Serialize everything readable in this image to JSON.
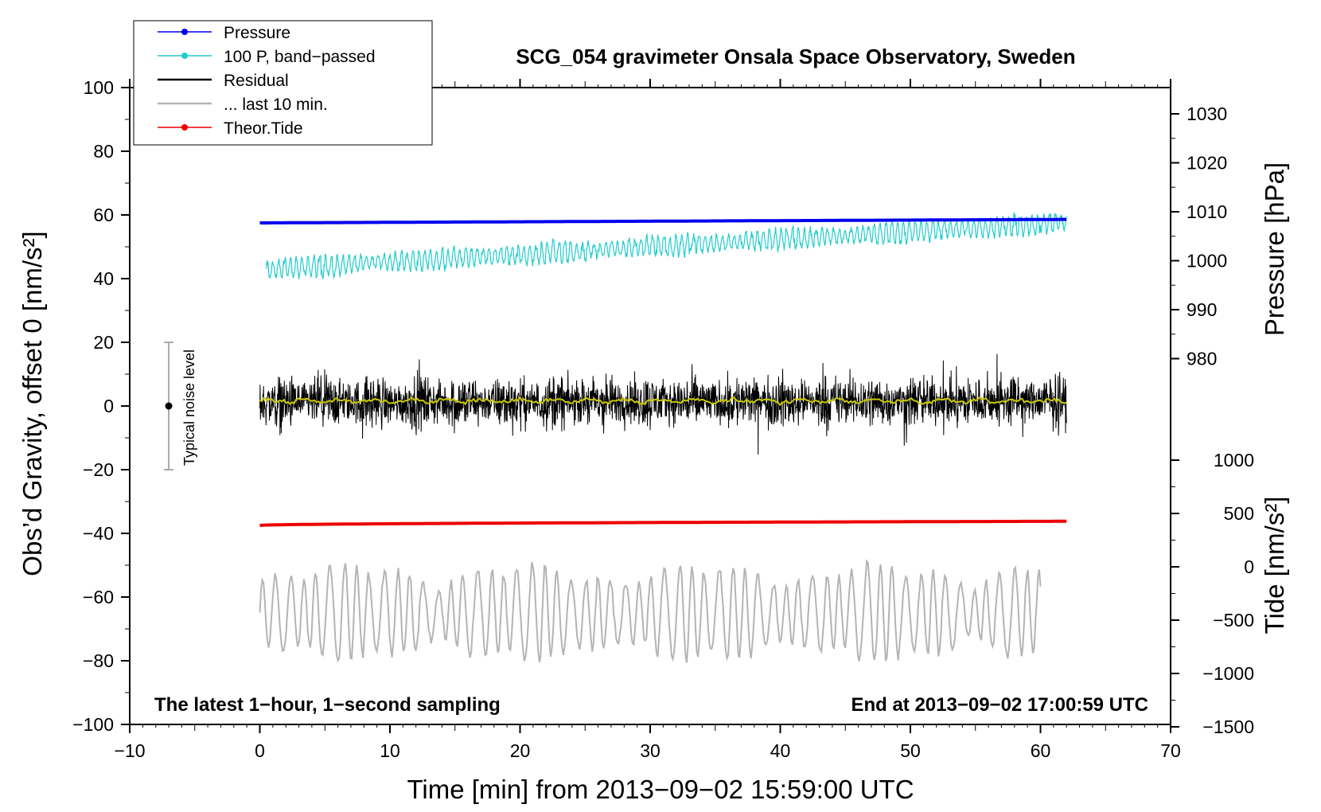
{
  "chart_data": {
    "type": "line",
    "title": "SCG_054 gravimeter Onsala Space Observatory, Sweden",
    "xlabel": "Time [min] from 2013−09−02 15:59:00 UTC",
    "ylabel_left": "Obs’d Gravity, offset 0 [nm/s²]",
    "ylabel_right_top": "Pressure [hPa]",
    "ylabel_right_bottom": "Tide [nm/s²]",
    "xlim": [
      -10,
      70
    ],
    "ylim_left": [
      -100,
      100
    ],
    "grid": false,
    "legend_position": "top-left",
    "x_ticks": [
      "−10",
      "0",
      "10",
      "20",
      "30",
      "40",
      "50",
      "60",
      "70"
    ],
    "y_ticks_left": [
      "100",
      "80",
      "60",
      "40",
      "20",
      "0",
      "−20",
      "−40",
      "−60",
      "−80",
      "−100"
    ],
    "pressure_ticks": [
      "1030",
      "1020",
      "1010",
      "1000",
      "990",
      "980"
    ],
    "tide_ticks": [
      "1000",
      "500",
      "0",
      "−500",
      "−1000",
      "−1500"
    ],
    "annotation_left": "The latest 1−hour, 1−second sampling",
    "annotation_right": "End at 2013−09−02 17:00:59 UTC",
    "noise_label": "Typical noise level",
    "noise_bar": {
      "x": -7,
      "y": 0,
      "low": -20,
      "high": 20
    },
    "series": [
      {
        "name": "Pressure",
        "color": "#0000ee",
        "x_range": [
          0,
          62
        ],
        "start": 57.5,
        "end": 58.6
      },
      {
        "name": "100 P, band−passed",
        "color": "#22cccc",
        "x_range": [
          0.5,
          62
        ],
        "start": 43,
        "end": 57.5,
        "amplitude": 3
      },
      {
        "name": "Residual",
        "color": "#000000",
        "x_range": [
          0,
          62
        ],
        "start": 1,
        "end": 1.5,
        "amplitude": 12
      },
      {
        "name": "... last 10 min.",
        "color": "#b4b4b4",
        "x_range": [
          0,
          60
        ],
        "start": -65,
        "end": -65,
        "amplitude": 12
      },
      {
        "name": "Theor.Tide",
        "color": "#ee0000",
        "x_range": [
          0,
          62
        ],
        "start": -37.5,
        "end": -36.2
      }
    ],
    "smoothed_residual_color": "#c8c800"
  }
}
